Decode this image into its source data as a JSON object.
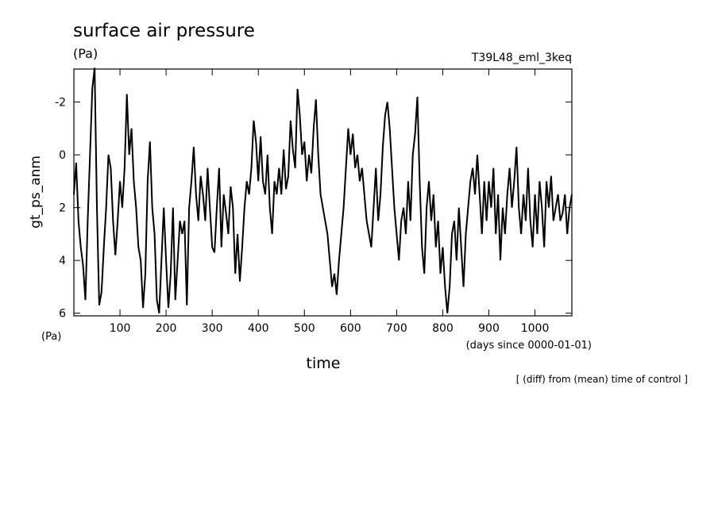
{
  "chart_data": {
    "type": "line",
    "title": "surface air pressure",
    "unit_label": "(Pa)",
    "experiment": "T39L48_eml_3keq",
    "y_label": "gt_ps_anm",
    "y_unit": "(Pa)",
    "x_unit": "(days since 0000-01-01)",
    "x_label": "time",
    "note": "[ (diff) from (mean) time of control ]",
    "xlim": [
      0,
      1080
    ],
    "ylim": [
      6.1,
      -3.25
    ],
    "xticks": [
      100,
      200,
      300,
      400,
      500,
      600,
      700,
      800,
      900,
      1000
    ],
    "yticks": [
      -2,
      0,
      2,
      4,
      6
    ],
    "x": [
      0,
      5,
      10,
      15,
      20,
      25,
      30,
      35,
      40,
      45,
      50,
      55,
      60,
      65,
      70,
      75,
      80,
      85,
      90,
      95,
      100,
      105,
      110,
      115,
      120,
      125,
      130,
      135,
      140,
      145,
      150,
      155,
      160,
      165,
      170,
      175,
      180,
      185,
      190,
      195,
      200,
      205,
      210,
      215,
      220,
      225,
      230,
      235,
      240,
      245,
      250,
      255,
      260,
      265,
      270,
      275,
      280,
      285,
      290,
      295,
      300,
      305,
      310,
      315,
      320,
      325,
      330,
      335,
      340,
      345,
      350,
      355,
      360,
      365,
      370,
      375,
      380,
      385,
      390,
      395,
      400,
      405,
      410,
      415,
      420,
      425,
      430,
      435,
      440,
      445,
      450,
      455,
      460,
      465,
      470,
      475,
      480,
      485,
      490,
      495,
      500,
      505,
      510,
      515,
      520,
      525,
      530,
      535,
      540,
      545,
      550,
      555,
      560,
      565,
      570,
      575,
      580,
      585,
      590,
      595,
      600,
      605,
      610,
      615,
      620,
      625,
      630,
      635,
      640,
      645,
      650,
      655,
      660,
      665,
      670,
      675,
      680,
      685,
      690,
      695,
      700,
      705,
      710,
      715,
      720,
      725,
      730,
      735,
      740,
      745,
      750,
      755,
      760,
      765,
      770,
      775,
      780,
      785,
      790,
      795,
      800,
      805,
      810,
      815,
      820,
      825,
      830,
      835,
      840,
      845,
      850,
      855,
      860,
      865,
      870,
      875,
      880,
      885,
      890,
      895,
      900,
      905,
      910,
      915,
      920,
      925,
      930,
      935,
      940,
      945,
      950,
      955,
      960,
      965,
      970,
      975,
      980,
      985,
      990,
      995,
      1000,
      1005,
      1010,
      1015,
      1020,
      1025,
      1030,
      1035,
      1040,
      1045,
      1050,
      1055,
      1060,
      1065,
      1070,
      1075,
      1080
    ],
    "series": [
      {
        "color": "#000000",
        "values": [
          1.5,
          0.3,
          2.5,
          3.5,
          4.2,
          5.5,
          2.5,
          0,
          -2.5,
          -3.3,
          2,
          5.7,
          5.2,
          3.5,
          2,
          0,
          0.5,
          2.5,
          3.8,
          2.5,
          1,
          2,
          0.5,
          -2.3,
          0,
          -1,
          1,
          2,
          3.5,
          4,
          5.8,
          4.5,
          1,
          -0.5,
          2,
          3,
          5.5,
          6,
          4,
          2,
          4,
          5.8,
          4.5,
          2,
          5.5,
          4,
          2.5,
          3,
          2.5,
          5.7,
          2,
          1,
          -0.3,
          1.5,
          2.5,
          0.8,
          1.5,
          2.5,
          0.5,
          2,
          3.5,
          3.7,
          2,
          0.5,
          3.5,
          1.5,
          2.2,
          3,
          1.2,
          2,
          4.5,
          3,
          4.8,
          3.5,
          2,
          1,
          1.5,
          0.5,
          -1.3,
          -0.5,
          1,
          -0.7,
          1,
          1.5,
          0,
          2,
          3,
          1,
          1.5,
          0.5,
          1.5,
          -0.2,
          1.3,
          0.8,
          -1.3,
          -0.2,
          0.5,
          -2.5,
          -1.5,
          0,
          -0.5,
          1,
          0,
          0.7,
          -1,
          -2.1,
          0,
          1.5,
          2,
          2.5,
          3,
          4,
          5,
          4.5,
          5.3,
          4,
          3,
          2,
          0.5,
          -1,
          0,
          -0.8,
          0.5,
          0,
          1,
          0.5,
          1.5,
          2.5,
          3,
          3.5,
          2,
          0.5,
          2.5,
          1.5,
          -0.3,
          -1.5,
          -2,
          -1,
          0.5,
          2,
          3,
          4,
          2.5,
          2,
          3,
          1,
          2.5,
          0,
          -0.8,
          -2.2,
          1,
          3.5,
          4.5,
          2,
          1,
          2.5,
          1.5,
          3.5,
          2.5,
          4.5,
          3.5,
          5,
          6,
          5,
          3,
          2.5,
          4,
          2,
          3.5,
          5,
          3,
          2,
          1,
          0.5,
          1.5,
          0,
          1.5,
          3,
          1,
          2.5,
          1,
          2,
          0.5,
          3,
          1.5,
          4,
          2,
          3,
          1.5,
          0.5,
          2,
          1,
          -0.3,
          2,
          3,
          1.5,
          2.5,
          0.5,
          2.5,
          3.5,
          1.5,
          3,
          1,
          2,
          3.5,
          1,
          2,
          0.8,
          2.5,
          2,
          1.5,
          2.5,
          2.2,
          1.5,
          3,
          2,
          1.5
        ]
      }
    ]
  }
}
